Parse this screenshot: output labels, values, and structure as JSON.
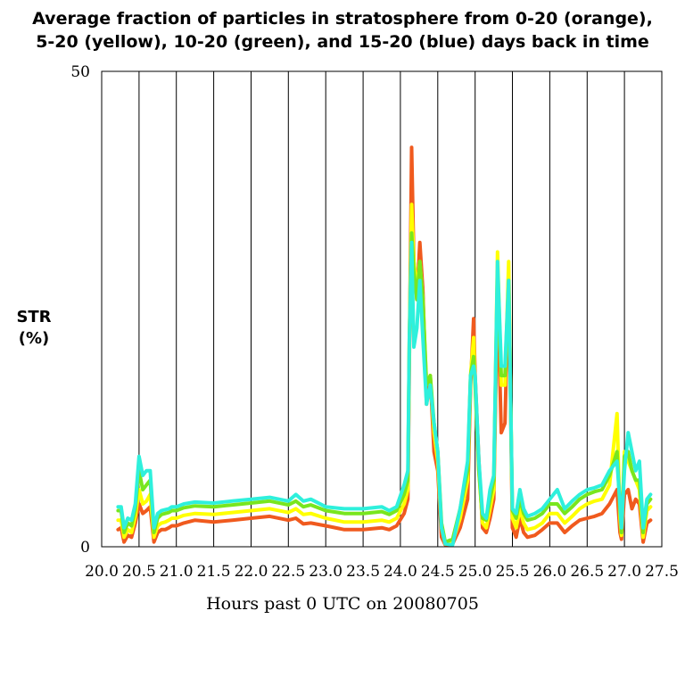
{
  "chart_data": {
    "type": "line",
    "title_lines": [
      "Average fraction of particles in stratosphere from 0-20 (orange),",
      "5-20 (yellow), 10-20 (green), and 15-20 (blue) days back in time"
    ],
    "ylabel_lines": [
      "STR",
      "(%)"
    ],
    "xlabel": "Hours past 0 UTC on 20080705",
    "xlim": [
      20.0,
      27.5
    ],
    "ylim": [
      0,
      50
    ],
    "yticks": [
      "0",
      "50"
    ],
    "xtick_values": [
      20.0,
      20.5,
      21.0,
      21.5,
      22.0,
      22.5,
      23.0,
      23.5,
      24.0,
      24.5,
      25.0,
      25.5,
      26.0,
      26.5,
      27.0,
      27.5
    ],
    "xtick_labels": [
      "20.0",
      "20.5",
      "21.0",
      "21.5",
      "22.0",
      "22.5",
      "23.0",
      "23.5",
      "24.0",
      "24.5",
      "25.0",
      "25.5",
      "26.0",
      "26.5",
      "27.0",
      "27.5"
    ],
    "grid": "vertical",
    "x": [
      20.22,
      20.26,
      20.3,
      20.35,
      20.4,
      20.45,
      20.5,
      20.55,
      20.6,
      20.65,
      20.7,
      20.75,
      20.8,
      20.85,
      20.9,
      20.94,
      21.0,
      21.1,
      21.25,
      21.5,
      21.75,
      22.0,
      22.25,
      22.5,
      22.6,
      22.7,
      22.8,
      23.0,
      23.25,
      23.5,
      23.75,
      23.85,
      23.95,
      24.05,
      24.1,
      24.12,
      24.15,
      24.18,
      24.22,
      24.26,
      24.3,
      24.35,
      24.4,
      24.45,
      24.5,
      24.55,
      24.6,
      24.7,
      24.8,
      24.9,
      24.94,
      24.98,
      25.0,
      25.05,
      25.1,
      25.15,
      25.2,
      25.25,
      25.3,
      25.35,
      25.4,
      25.45,
      25.5,
      25.55,
      25.6,
      25.65,
      25.7,
      25.8,
      25.9,
      26.0,
      26.1,
      26.2,
      26.3,
      26.4,
      26.5,
      26.6,
      26.7,
      26.8,
      26.9,
      26.94,
      26.96,
      27.0,
      27.05,
      27.1,
      27.15,
      27.2,
      27.25,
      27.3,
      27.35
    ],
    "series": [
      {
        "color": "#f05a1e",
        "values": [
          1.8,
          2.0,
          0.5,
          1.2,
          1.0,
          2.5,
          4.5,
          3.5,
          3.8,
          4.2,
          0.5,
          1.5,
          1.8,
          1.8,
          2.0,
          2.2,
          2.2,
          2.5,
          2.8,
          2.6,
          2.8,
          3.0,
          3.2,
          2.8,
          3.0,
          2.4,
          2.5,
          2.2,
          1.8,
          1.8,
          2.0,
          1.8,
          2.2,
          3.5,
          5.0,
          20.0,
          42.0,
          30.0,
          26.0,
          32.0,
          27.0,
          15.0,
          18.0,
          10.0,
          8.0,
          1.0,
          0.2,
          0.3,
          2.0,
          5.0,
          17.0,
          24.0,
          18.0,
          9.0,
          2.0,
          1.5,
          3.0,
          5.0,
          27.0,
          12.0,
          13.0,
          29.0,
          2.0,
          1.0,
          3.0,
          1.5,
          1.0,
          1.2,
          1.8,
          2.5,
          2.5,
          1.5,
          2.2,
          2.8,
          3.0,
          3.2,
          3.5,
          4.5,
          6.0,
          1.5,
          0.8,
          5.5,
          6.0,
          4.0,
          5.0,
          4.5,
          0.5,
          2.5,
          2.8
        ]
      },
      {
        "color": "#ffff00",
        "values": [
          2.8,
          2.8,
          1.0,
          1.8,
          1.5,
          3.2,
          6.0,
          4.5,
          4.8,
          5.5,
          1.0,
          2.2,
          2.5,
          2.6,
          2.8,
          3.0,
          3.0,
          3.3,
          3.5,
          3.4,
          3.6,
          3.8,
          4.0,
          3.6,
          4.0,
          3.4,
          3.5,
          3.0,
          2.6,
          2.6,
          2.8,
          2.6,
          3.0,
          4.5,
          6.0,
          22.0,
          36.0,
          30.0,
          27.0,
          30.0,
          26.0,
          17.0,
          18.0,
          12.0,
          9.0,
          2.0,
          0.3,
          0.5,
          3.0,
          7.0,
          18.0,
          22.0,
          17.0,
          8.0,
          2.5,
          2.0,
          4.0,
          6.0,
          31.0,
          17.0,
          17.0,
          30.0,
          3.0,
          2.0,
          4.0,
          2.5,
          1.8,
          2.0,
          2.5,
          3.5,
          3.5,
          2.5,
          3.2,
          4.0,
          4.5,
          4.8,
          5.0,
          6.5,
          14.0,
          3.0,
          1.2,
          10.0,
          9.0,
          8.0,
          7.0,
          6.0,
          1.0,
          3.8,
          4.2
        ]
      },
      {
        "color": "#78e61e",
        "values": [
          3.8,
          3.8,
          1.5,
          2.5,
          2.2,
          4.0,
          8.0,
          6.0,
          6.5,
          7.0,
          1.5,
          3.0,
          3.4,
          3.5,
          3.6,
          3.8,
          3.8,
          4.1,
          4.3,
          4.2,
          4.4,
          4.6,
          4.8,
          4.4,
          4.8,
          4.2,
          4.4,
          3.8,
          3.5,
          3.5,
          3.7,
          3.4,
          3.8,
          5.5,
          7.0,
          22.0,
          33.0,
          29.0,
          26.0,
          30.0,
          26.0,
          17.0,
          18.0,
          13.0,
          10.0,
          2.5,
          0.5,
          0.8,
          4.0,
          8.0,
          18.0,
          20.0,
          17.0,
          8.0,
          3.0,
          2.8,
          5.0,
          7.0,
          29.0,
          18.0,
          18.0,
          28.0,
          3.8,
          3.0,
          5.0,
          3.5,
          2.8,
          3.0,
          3.5,
          4.5,
          4.5,
          3.5,
          4.2,
          5.0,
          5.5,
          5.8,
          6.0,
          7.5,
          10.0,
          4.0,
          1.5,
          9.5,
          10.0,
          8.0,
          7.0,
          7.0,
          1.5,
          4.5,
          5.0
        ]
      },
      {
        "color": "#2ef0dc",
        "values": [
          4.2,
          4.2,
          2.0,
          3.0,
          2.8,
          4.5,
          9.5,
          7.5,
          8.0,
          8.0,
          2.0,
          3.5,
          3.8,
          3.9,
          4.0,
          4.2,
          4.2,
          4.5,
          4.7,
          4.6,
          4.8,
          5.0,
          5.2,
          4.8,
          5.5,
          4.8,
          5.0,
          4.2,
          4.0,
          4.0,
          4.2,
          3.8,
          4.2,
          6.5,
          8.0,
          22.0,
          32.0,
          21.0,
          23.0,
          28.0,
          22.0,
          15.0,
          17.0,
          13.0,
          10.0,
          2.0,
          0.3,
          0.2,
          4.0,
          9.0,
          18.0,
          19.0,
          18.0,
          9.0,
          3.5,
          3.0,
          6.0,
          7.5,
          30.0,
          19.0,
          19.0,
          28.0,
          4.0,
          3.5,
          6.0,
          4.0,
          3.2,
          3.5,
          4.0,
          5.0,
          6.0,
          4.0,
          4.8,
          5.5,
          6.0,
          6.2,
          6.5,
          8.0,
          9.0,
          4.5,
          2.0,
          8.0,
          12.0,
          10.0,
          8.0,
          9.0,
          2.0,
          5.0,
          5.5
        ]
      }
    ]
  }
}
